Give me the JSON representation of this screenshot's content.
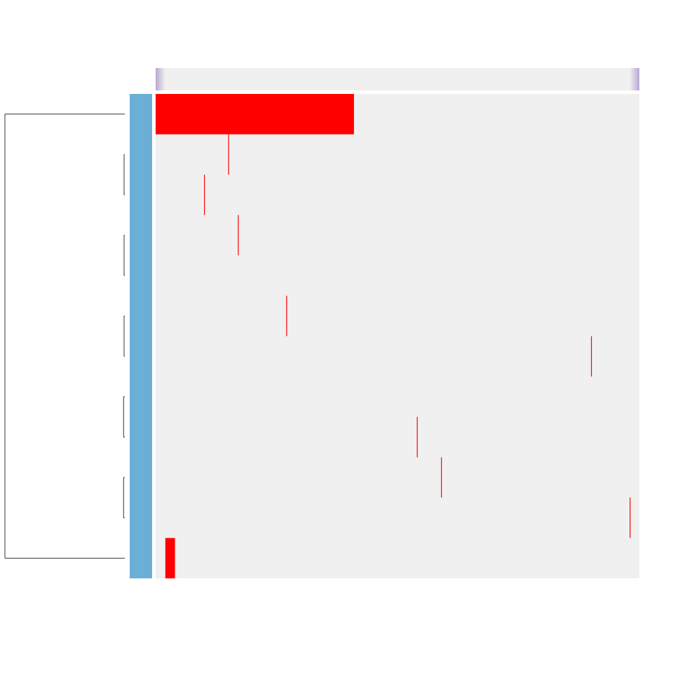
{
  "chart_data": {
    "type": "heatmap",
    "title": "",
    "xlabel": "",
    "ylabel": "",
    "n_rows": 12,
    "n_cols": 100,
    "cells": [
      {
        "row": 0,
        "col_start": 0,
        "col_end": 40,
        "value": 1
      },
      {
        "row": 1,
        "col_start": 15,
        "col_end": 15,
        "value": 1
      },
      {
        "row": 2,
        "col_start": 10,
        "col_end": 10,
        "value": 1
      },
      {
        "row": 3,
        "col_start": 17,
        "col_end": 17,
        "value": 1
      },
      {
        "row": 5,
        "col_start": 27,
        "col_end": 27,
        "value": 1
      },
      {
        "row": 6,
        "col_start": 90,
        "col_end": 90,
        "value": 1
      },
      {
        "row": 8,
        "col_start": 54,
        "col_end": 54,
        "value": 1
      },
      {
        "row": 9,
        "col_start": 59,
        "col_end": 59,
        "value": 1
      },
      {
        "row": 10,
        "col_start": 98,
        "col_end": 98,
        "value": 1
      },
      {
        "row": 11,
        "col_start": 2,
        "col_end": 3,
        "value": 1
      }
    ],
    "row_dendrogram": {
      "merges": [
        {
          "a": 1,
          "b": 2,
          "height": 0.0
        },
        {
          "a": 3,
          "b": 4,
          "height": 0.0
        },
        {
          "a": 5,
          "b": 6,
          "height": 0.0
        },
        {
          "a": 7,
          "b": 8,
          "height": 0.01
        },
        {
          "a": 9,
          "b": 10,
          "height": 0.01
        },
        {
          "a": 11,
          "b": 0,
          "height": 1.0
        }
      ]
    },
    "row_annotation_color": "#6baed6",
    "column_annotation_colors": [
      "#b9a7d3",
      "#f0f0f0"
    ],
    "colors": {
      "background": "#f0f0f0",
      "high": "#ff0000",
      "dendrogram": "#333333"
    },
    "grid": false,
    "legend": "none"
  }
}
